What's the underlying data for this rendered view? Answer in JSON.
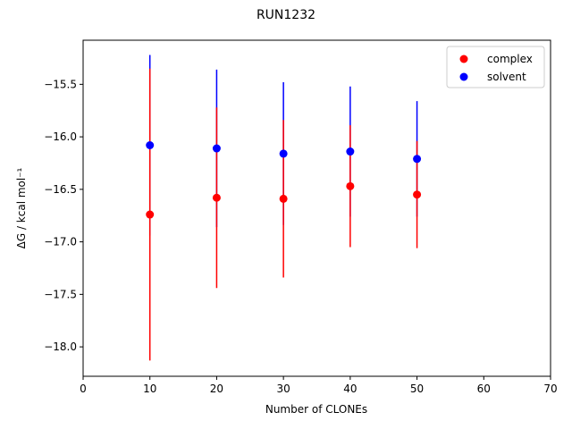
{
  "chart_data": {
    "type": "scatter",
    "title": "RUN1232",
    "xlabel": "Number of CLONEs",
    "ylabel": "ΔG / kcal mol⁻¹",
    "xlim": [
      0,
      70
    ],
    "ylim": [
      -18.28,
      -15.08
    ],
    "xticks": [
      0,
      10,
      20,
      30,
      40,
      50,
      60,
      70
    ],
    "yticks": [
      -18.0,
      -17.5,
      -17.0,
      -16.5,
      -16.0,
      -15.5
    ],
    "grid": false,
    "legend_position": "top-right",
    "series": [
      {
        "name": "complex",
        "color": "#ff0000",
        "x": [
          10,
          20,
          30,
          40,
          50
        ],
        "y": [
          -16.74,
          -16.58,
          -16.59,
          -16.47,
          -16.55
        ],
        "err": [
          1.39,
          0.86,
          0.75,
          0.58,
          0.51
        ]
      },
      {
        "name": "solvent",
        "color": "#0000ff",
        "x": [
          10,
          20,
          30,
          40,
          50
        ],
        "y": [
          -16.08,
          -16.11,
          -16.16,
          -16.14,
          -16.21
        ],
        "err": [
          0.86,
          0.75,
          0.68,
          0.62,
          0.55
        ]
      }
    ]
  }
}
